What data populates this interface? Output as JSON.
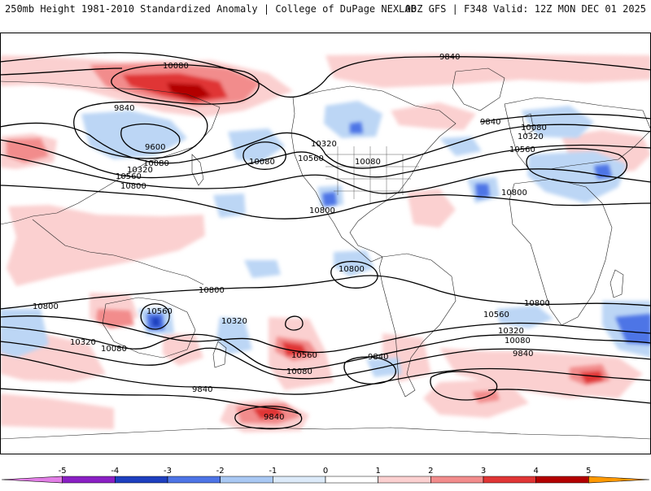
{
  "header": {
    "left": "250mb Height 1981-2010 Standardized Anomaly | College of DuPage NEXLAB",
    "right": "00Z GFS | F348 Valid: 12Z MON DEC 01 2025"
  },
  "contour_labels": [
    {
      "text": "10080"
    },
    {
      "text": "9840"
    },
    {
      "text": "9840"
    },
    {
      "text": "9600"
    },
    {
      "text": "10080"
    },
    {
      "text": "10560"
    },
    {
      "text": "10320"
    },
    {
      "text": "10800"
    },
    {
      "text": "10080"
    },
    {
      "text": "10320"
    },
    {
      "text": "10560"
    },
    {
      "text": "10080"
    },
    {
      "text": "10800"
    },
    {
      "text": "9840"
    },
    {
      "text": "10080"
    },
    {
      "text": "10320"
    },
    {
      "text": "10560"
    },
    {
      "text": "10800"
    },
    {
      "text": "10800"
    },
    {
      "text": "10800"
    },
    {
      "text": "10800"
    },
    {
      "text": "10560"
    },
    {
      "text": "10320"
    },
    {
      "text": "10320"
    },
    {
      "text": "10080"
    },
    {
      "text": "10560"
    },
    {
      "text": "9840"
    },
    {
      "text": "10080"
    },
    {
      "text": "10800"
    },
    {
      "text": "10560"
    },
    {
      "text": "10320"
    },
    {
      "text": "10080"
    },
    {
      "text": "9840"
    },
    {
      "text": "9840"
    },
    {
      "text": "9840"
    }
  ],
  "colorbar": {
    "ticks": [
      "-5",
      "-4",
      "-3",
      "-2",
      "-1",
      "0",
      "1",
      "2",
      "3",
      "4",
      "5"
    ],
    "colors": [
      "#e27ee6",
      "#8a1fc4",
      "#1e3fbf",
      "#4d74e6",
      "#a9c8f3",
      "#dceaf9",
      "#ffffff",
      "#fbd0d0",
      "#f28c8c",
      "#e03535",
      "#b30000",
      "#ff9900"
    ]
  }
}
